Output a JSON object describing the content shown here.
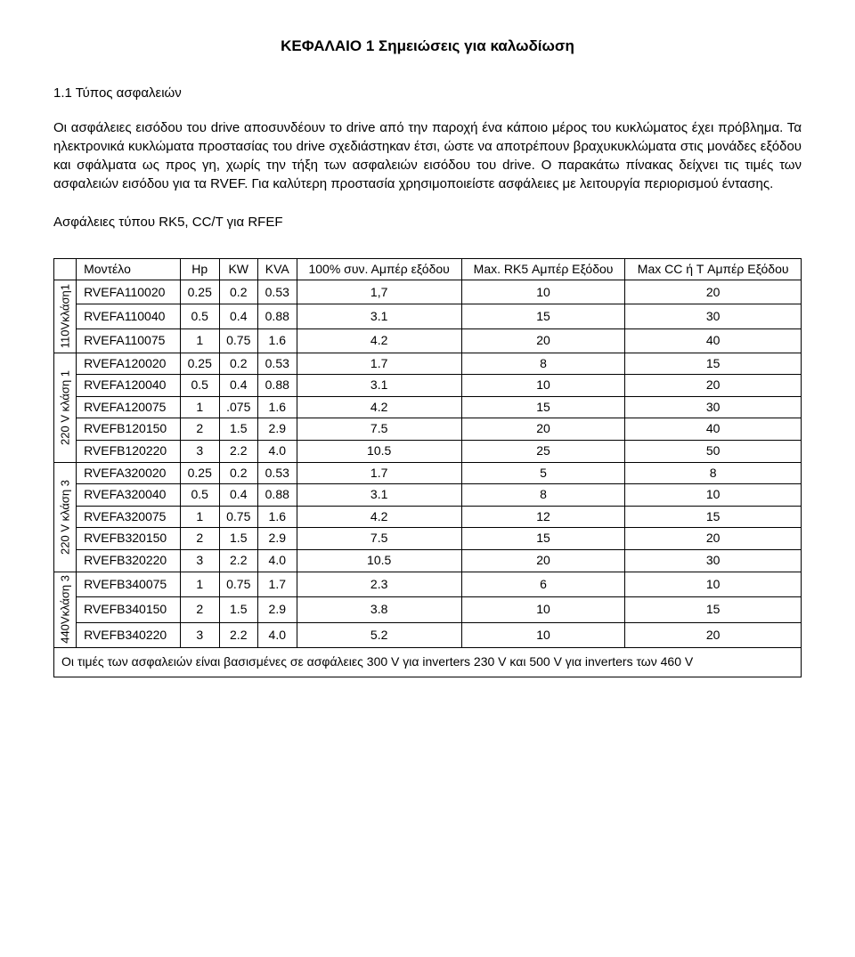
{
  "chapter_title": "ΚΕΦΑΛΑΙΟ 1  Σημειώσεις για καλωδίωση",
  "section_title": "1.1 Τύπος ασφαλειών",
  "paragraph": "Οι ασφάλειες εισόδου του drive αποσυνδέουν το drive από την παροχή ένα κάποιο μέρος του κυκλώματος έχει πρόβλημα. Τα ηλεκτρονικά κυκλώματα προστασίας του drive σχεδιάστηκαν έτσι, ώστε να αποτρέπουν βραχυκυκλώματα στις μονάδες εξόδου και σφάλματα ως προς γη, χωρίς την τήξη των ασφαλειών εισόδου του drive. Ο παρακάτω πίνακας δείχνει τις τιμές των ασφαλειών εισόδου για τα RVEF. Για καλύτερη προστασία χρησιμοποιείστε ασφάλειες με λειτουργία περιορισμού έντασης.",
  "fuse_sub": "Ασφάλειες τύπου RK5, CC/T για RFEF",
  "columns": {
    "model": "Μοντέλο",
    "hp": "Hp",
    "kw": "KW",
    "kva": "KVA",
    "out100": "100% συν. Αμπέρ εξόδου",
    "rk5": "Max. RK5 Αμπέρ Εξόδου",
    "cct": "Max CC ή T Αμπέρ Εξόδου"
  },
  "groups": {
    "g110": "110Vκλάση1",
    "g220_1": "220 V κλάση 1",
    "g220_3": "220 V κλάση 3",
    "g440": "440Vκλάση 3"
  },
  "rows": [
    {
      "model": "RVEFA110020",
      "hp": "0.25",
      "kw": "0.2",
      "kva": "0.53",
      "out": "1,7",
      "rk5": "10",
      "cct": "20"
    },
    {
      "model": "RVEFA110040",
      "hp": "0.5",
      "kw": "0.4",
      "kva": "0.88",
      "out": "3.1",
      "rk5": "15",
      "cct": "30"
    },
    {
      "model": "RVEFA110075",
      "hp": "1",
      "kw": "0.75",
      "kva": "1.6",
      "out": "4.2",
      "rk5": "20",
      "cct": "40"
    },
    {
      "model": "RVEFA120020",
      "hp": "0.25",
      "kw": "0.2",
      "kva": "0.53",
      "out": "1.7",
      "rk5": "8",
      "cct": "15"
    },
    {
      "model": "RVEFA120040",
      "hp": "0.5",
      "kw": "0.4",
      "kva": "0.88",
      "out": "3.1",
      "rk5": "10",
      "cct": "20"
    },
    {
      "model": "RVEFA120075",
      "hp": "1",
      "kw": ".075",
      "kva": "1.6",
      "out": "4.2",
      "rk5": "15",
      "cct": "30"
    },
    {
      "model": "RVEFB120150",
      "hp": "2",
      "kw": "1.5",
      "kva": "2.9",
      "out": "7.5",
      "rk5": "20",
      "cct": "40"
    },
    {
      "model": "RVEFB120220",
      "hp": "3",
      "kw": "2.2",
      "kva": "4.0",
      "out": "10.5",
      "rk5": "25",
      "cct": "50"
    },
    {
      "model": "RVEFA320020",
      "hp": "0.25",
      "kw": "0.2",
      "kva": "0.53",
      "out": "1.7",
      "rk5": "5",
      "cct": "8"
    },
    {
      "model": "RVEFA320040",
      "hp": "0.5",
      "kw": "0.4",
      "kva": "0.88",
      "out": "3.1",
      "rk5": "8",
      "cct": "10"
    },
    {
      "model": "RVEFA320075",
      "hp": "1",
      "kw": "0.75",
      "kva": "1.6",
      "out": "4.2",
      "rk5": "12",
      "cct": "15"
    },
    {
      "model": "RVEFB320150",
      "hp": "2",
      "kw": "1.5",
      "kva": "2.9",
      "out": "7.5",
      "rk5": "15",
      "cct": "20"
    },
    {
      "model": "RVEFB320220",
      "hp": "3",
      "kw": "2.2",
      "kva": "4.0",
      "out": "10.5",
      "rk5": "20",
      "cct": "30"
    },
    {
      "model": "RVEFB340075",
      "hp": "1",
      "kw": "0.75",
      "kva": "1.7",
      "out": "2.3",
      "rk5": "6",
      "cct": "10"
    },
    {
      "model": "RVEFB340150",
      "hp": "2",
      "kw": "1.5",
      "kva": "2.9",
      "out": "3.8",
      "rk5": "10",
      "cct": "15"
    },
    {
      "model": "RVEFB340220",
      "hp": "3",
      "kw": "2.2",
      "kva": "4.0",
      "out": "5.2",
      "rk5": "10",
      "cct": "20"
    }
  ],
  "footer_note": "Οι τιμές των ασφαλειών είναι βασισμένες σε ασφάλειες 300 V για inverters 230 V και 500 V για inverters των 460 V"
}
